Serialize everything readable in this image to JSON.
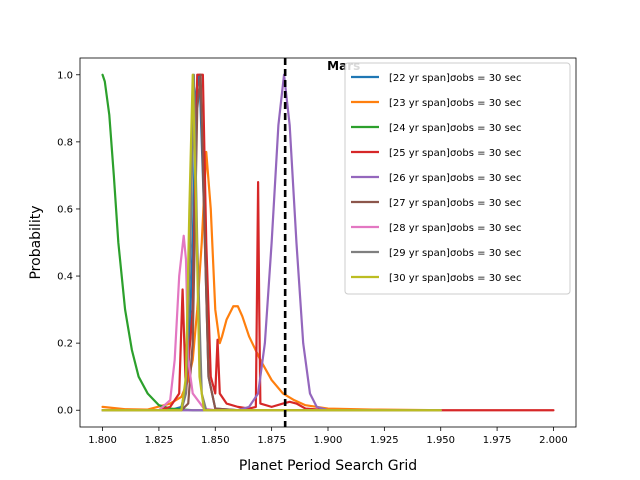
{
  "chart_data": {
    "type": "line",
    "title": "",
    "xlabel": "Planet Period Search Grid",
    "ylabel": "Probability",
    "xlim": [
      1.79,
      2.01
    ],
    "ylim": [
      -0.05,
      1.05
    ],
    "xticks": [
      1.8,
      1.825,
      1.85,
      1.875,
      1.9,
      1.925,
      1.95,
      1.975,
      2.0
    ],
    "xtick_labels": [
      "1.800",
      "1.825",
      "1.850",
      "1.875",
      "1.900",
      "1.925",
      "1.950",
      "1.975",
      "2.000"
    ],
    "yticks": [
      0.0,
      0.2,
      0.4,
      0.6,
      0.8,
      1.0
    ],
    "ytick_labels": [
      "0.0",
      "0.2",
      "0.4",
      "0.6",
      "0.8",
      "1.0"
    ],
    "grid": false,
    "legend_position": "upper-right",
    "annotation": {
      "text": "Mars",
      "x": 1.881
    },
    "reference_line": {
      "x": 1.881,
      "style": "dashed",
      "color": "#000000"
    },
    "series": [
      {
        "name": "[22 yr span]σobs = 30 sec",
        "color": "#1f77b4",
        "points": [
          [
            1.8,
            0
          ],
          [
            1.83,
            0
          ],
          [
            1.835,
            0.01
          ],
          [
            1.838,
            0.1
          ],
          [
            1.84,
            0.5
          ],
          [
            1.8415,
            0.95
          ],
          [
            1.843,
            1.0
          ],
          [
            1.845,
            0.6
          ],
          [
            1.847,
            0.1
          ],
          [
            1.85,
            0.005
          ],
          [
            1.86,
            0
          ],
          [
            1.95,
            0
          ]
        ]
      },
      {
        "name": "[23 yr span]σobs = 30 sec",
        "color": "#ff7f0e",
        "points": [
          [
            1.8,
            0.01
          ],
          [
            1.81,
            0.003
          ],
          [
            1.82,
            0.002
          ],
          [
            1.83,
            0.02
          ],
          [
            1.835,
            0.04
          ],
          [
            1.838,
            0.09
          ],
          [
            1.84,
            0.15
          ],
          [
            1.842,
            0.3
          ],
          [
            1.844,
            0.5
          ],
          [
            1.846,
            0.77
          ],
          [
            1.848,
            0.6
          ],
          [
            1.85,
            0.3
          ],
          [
            1.852,
            0.2
          ],
          [
            1.853,
            0.22
          ],
          [
            1.855,
            0.27
          ],
          [
            1.858,
            0.31
          ],
          [
            1.86,
            0.31
          ],
          [
            1.862,
            0.28
          ],
          [
            1.865,
            0.22
          ],
          [
            1.87,
            0.15
          ],
          [
            1.875,
            0.09
          ],
          [
            1.88,
            0.05
          ],
          [
            1.885,
            0.03
          ],
          [
            1.89,
            0.015
          ],
          [
            1.9,
            0.005
          ],
          [
            1.92,
            0.002
          ],
          [
            1.95,
            0
          ]
        ]
      },
      {
        "name": "[24 yr span]σobs = 30 sec",
        "color": "#2ca02c",
        "points": [
          [
            1.8,
            1.0
          ],
          [
            1.801,
            0.98
          ],
          [
            1.803,
            0.88
          ],
          [
            1.805,
            0.7
          ],
          [
            1.807,
            0.5
          ],
          [
            1.81,
            0.3
          ],
          [
            1.813,
            0.18
          ],
          [
            1.816,
            0.1
          ],
          [
            1.82,
            0.05
          ],
          [
            1.825,
            0.015
          ],
          [
            1.83,
            0.005
          ],
          [
            1.84,
            0
          ],
          [
            1.95,
            0
          ]
        ]
      },
      {
        "name": "[25 yr span]σobs = 30 sec",
        "color": "#d62728",
        "points": [
          [
            1.8,
            0
          ],
          [
            1.825,
            0
          ],
          [
            1.83,
            0.01
          ],
          [
            1.834,
            0.05
          ],
          [
            1.8355,
            0.36
          ],
          [
            1.837,
            0.05
          ],
          [
            1.84,
            0.3
          ],
          [
            1.842,
            1.0
          ],
          [
            1.8445,
            1.0
          ],
          [
            1.846,
            0.5
          ],
          [
            1.848,
            0.1
          ],
          [
            1.85,
            0.05
          ],
          [
            1.851,
            0.21
          ],
          [
            1.852,
            0.05
          ],
          [
            1.855,
            0.02
          ],
          [
            1.86,
            0.01
          ],
          [
            1.865,
            0.005
          ],
          [
            1.868,
            0.01
          ],
          [
            1.869,
            0.68
          ],
          [
            1.8695,
            0.3
          ],
          [
            1.87,
            0.02
          ],
          [
            1.875,
            0.01
          ],
          [
            1.88,
            0.02
          ],
          [
            1.883,
            0.025
          ],
          [
            1.886,
            0.02
          ],
          [
            1.89,
            0.005
          ],
          [
            1.9,
            0
          ],
          [
            2.0,
            0
          ]
        ]
      },
      {
        "name": "[26 yr span]σobs = 30 sec",
        "color": "#9467bd",
        "points": [
          [
            1.8,
            0
          ],
          [
            1.86,
            0
          ],
          [
            1.865,
            0.01
          ],
          [
            1.869,
            0.05
          ],
          [
            1.872,
            0.2
          ],
          [
            1.875,
            0.5
          ],
          [
            1.878,
            0.85
          ],
          [
            1.8805,
            1.0
          ],
          [
            1.883,
            0.85
          ],
          [
            1.886,
            0.5
          ],
          [
            1.889,
            0.2
          ],
          [
            1.892,
            0.05
          ],
          [
            1.895,
            0.01
          ],
          [
            1.9,
            0
          ],
          [
            1.95,
            0
          ]
        ]
      },
      {
        "name": "[27 yr span]σobs = 30 sec",
        "color": "#8c564b",
        "points": [
          [
            1.8,
            0
          ],
          [
            1.835,
            0
          ],
          [
            1.838,
            0.02
          ],
          [
            1.84,
            0.2
          ],
          [
            1.842,
            0.9
          ],
          [
            1.8435,
            1.0
          ],
          [
            1.845,
            0.6
          ],
          [
            1.847,
            0.1
          ],
          [
            1.85,
            0.005
          ],
          [
            1.86,
            0
          ],
          [
            1.95,
            0
          ]
        ]
      },
      {
        "name": "[28 yr span]σobs = 30 sec",
        "color": "#e377c2",
        "points": [
          [
            1.8,
            0
          ],
          [
            1.825,
            0
          ],
          [
            1.83,
            0.03
          ],
          [
            1.832,
            0.15
          ],
          [
            1.834,
            0.4
          ],
          [
            1.836,
            0.52
          ],
          [
            1.837,
            0.45
          ],
          [
            1.838,
            0.15
          ],
          [
            1.84,
            0.05
          ],
          [
            1.845,
            0.005
          ],
          [
            1.85,
            0
          ],
          [
            1.95,
            0
          ]
        ]
      },
      {
        "name": "[29 yr span]σobs = 30 sec",
        "color": "#7f7f7f",
        "points": [
          [
            1.8,
            0
          ],
          [
            1.835,
            0
          ],
          [
            1.837,
            0.05
          ],
          [
            1.839,
            0.5
          ],
          [
            1.8405,
            1.0
          ],
          [
            1.842,
            0.5
          ],
          [
            1.844,
            0.05
          ],
          [
            1.846,
            0
          ],
          [
            1.95,
            0
          ]
        ]
      },
      {
        "name": "[30 yr span]σobs = 30 sec",
        "color": "#bcbd22",
        "points": [
          [
            1.8,
            0
          ],
          [
            1.835,
            0
          ],
          [
            1.837,
            0.1
          ],
          [
            1.8385,
            0.6
          ],
          [
            1.84,
            1.0
          ],
          [
            1.8415,
            0.6
          ],
          [
            1.843,
            0.1
          ],
          [
            1.845,
            0
          ],
          [
            1.95,
            0
          ]
        ]
      }
    ]
  }
}
